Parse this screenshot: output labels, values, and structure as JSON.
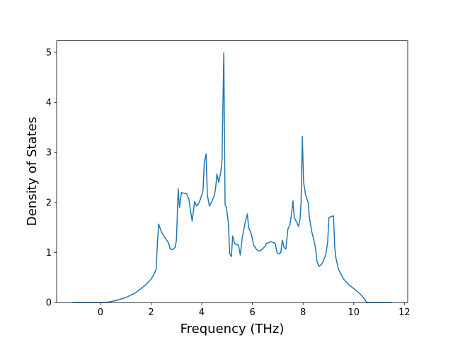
{
  "chart_data": {
    "type": "line",
    "xlabel": "Frequency (THz)",
    "ylabel": "Density of States",
    "xlim": [
      -1.73,
      12.13
    ],
    "ylim": [
      0,
      5.23
    ],
    "xticks": [
      0,
      2,
      4,
      6,
      8,
      10,
      12
    ],
    "yticks": [
      0,
      1,
      2,
      3,
      4,
      5
    ],
    "series": [
      {
        "color": "#1f77b4",
        "x": [
          -1.1,
          0,
          0.3,
          0.6,
          1.0,
          1.4,
          1.8,
          2.0,
          2.1,
          2.2,
          2.25,
          2.3,
          2.4,
          2.5,
          2.6,
          2.7,
          2.75,
          2.85,
          2.95,
          3.0,
          3.07,
          3.12,
          3.2,
          3.3,
          3.4,
          3.5,
          3.55,
          3.62,
          3.72,
          3.8,
          3.9,
          4.0,
          4.05,
          4.1,
          4.17,
          4.22,
          4.3,
          4.4,
          4.5,
          4.55,
          4.6,
          4.67,
          4.75,
          4.8,
          4.87,
          4.92,
          4.97,
          5.05,
          5.1,
          5.17,
          5.22,
          5.3,
          5.4,
          5.45,
          5.52,
          5.6,
          5.7,
          5.8,
          5.85,
          5.95,
          6.05,
          6.15,
          6.25,
          6.35,
          6.45,
          6.5,
          6.55,
          6.65,
          6.72,
          6.82,
          6.9,
          6.97,
          7.05,
          7.12,
          7.18,
          7.25,
          7.32,
          7.4,
          7.48,
          7.55,
          7.6,
          7.65,
          7.75,
          7.82,
          7.88,
          7.92,
          7.97,
          8.02,
          8.1,
          8.2,
          8.25,
          8.35,
          8.45,
          8.5,
          8.55,
          8.63,
          8.72,
          8.8,
          8.9,
          8.97,
          9.02,
          9.1,
          9.2,
          9.25,
          9.3,
          9.4,
          9.6,
          9.8,
          10.0,
          10.2,
          10.35,
          10.45,
          10.52,
          11.0,
          11.5
        ],
        "values": [
          0,
          0,
          0.01,
          0.04,
          0.1,
          0.2,
          0.36,
          0.47,
          0.55,
          0.67,
          1.2,
          1.57,
          1.42,
          1.33,
          1.26,
          1.18,
          1.07,
          1.06,
          1.1,
          1.25,
          2.27,
          1.9,
          2.2,
          2.18,
          2.18,
          2.05,
          1.85,
          1.63,
          2.02,
          1.93,
          2.0,
          2.15,
          2.25,
          2.8,
          2.97,
          2.15,
          1.93,
          2.02,
          2.15,
          2.3,
          2.57,
          2.4,
          2.6,
          2.85,
          4.99,
          1.96,
          1.9,
          1.6,
          0.98,
          0.92,
          1.33,
          1.18,
          1.15,
          1.15,
          0.95,
          1.3,
          1.57,
          1.77,
          1.5,
          1.38,
          1.15,
          1.07,
          1.03,
          1.05,
          1.1,
          1.12,
          1.18,
          1.2,
          1.22,
          1.2,
          1.18,
          1.0,
          0.97,
          1.0,
          1.25,
          1.1,
          1.07,
          1.47,
          1.55,
          1.8,
          2.03,
          1.7,
          1.6,
          1.52,
          1.67,
          2.0,
          3.32,
          2.4,
          2.15,
          2.0,
          1.7,
          1.4,
          1.2,
          1.05,
          0.82,
          0.72,
          0.76,
          0.83,
          0.97,
          1.2,
          1.7,
          1.72,
          1.73,
          1.1,
          0.88,
          0.66,
          0.47,
          0.36,
          0.28,
          0.2,
          0.12,
          0.05,
          0,
          0,
          0
        ]
      }
    ]
  }
}
